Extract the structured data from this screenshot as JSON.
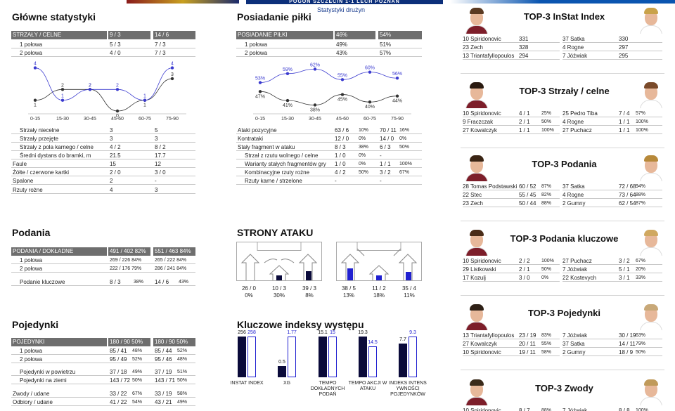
{
  "banner": {
    "match": "POGOŃ SZCZECIN 1-1 LECH POZNAŃ",
    "subtitle": "Statystyki drużyn"
  },
  "colors": {
    "home_dark": "#0a0a3a",
    "away_blue": "#2020d0",
    "header_gray": "#6e6e6e",
    "line_home": "#333333",
    "line_away": "#3a3acf"
  },
  "main_stats": {
    "title": "Główne statystyki",
    "header": {
      "label": "STRZAŁY / CELNE",
      "home": "9 / 3",
      "away": "14 / 6"
    },
    "halves": [
      {
        "label": "1 połowa",
        "home": "5 / 3",
        "away": "7 / 3"
      },
      {
        "label": "2 połowa",
        "home": "4 / 0",
        "away": "7 / 3"
      }
    ],
    "rows": [
      {
        "label": "Strzały niecelne",
        "home": "3",
        "away": "5"
      },
      {
        "label": "Strzały przejęte",
        "home": "3",
        "away": "3"
      },
      {
        "label": "Strzały z pola karnego / celne",
        "home": "4 / 2",
        "away": "8 / 2"
      },
      {
        "label": "Średni dystans do bramki, m",
        "home": "21.5",
        "away": "17.7"
      },
      {
        "label": "Faule",
        "home": "15",
        "away": "12"
      },
      {
        "label": "Żółte / czerwone kartki",
        "home": "2 / 0",
        "away": "3 / 0"
      },
      {
        "label": "Spalone",
        "home": "2",
        "away": "-"
      },
      {
        "label": "Rzuty rożne",
        "home": "4",
        "away": "3"
      }
    ]
  },
  "possession": {
    "title": "Posiadanie piłki",
    "header": {
      "label": "POSIADANIE PIŁKI",
      "home": "46%",
      "away": "54%"
    },
    "halves": [
      {
        "label": "1 połowa",
        "home": "49%",
        "away": "51%"
      },
      {
        "label": "2 połowa",
        "home": "43%",
        "away": "57%"
      }
    ],
    "rows": [
      {
        "label": "Ataki pozycyjne",
        "home": "63 / 6",
        "home_pct": "10%",
        "away": "70 / 11",
        "away_pct": "16%",
        "indent": false
      },
      {
        "label": "Kontrataki",
        "home": "12 / 0",
        "home_pct": "0%",
        "away": "14 / 0",
        "away_pct": "0%",
        "indent": false
      },
      {
        "label": "Stały fragment w ataku",
        "home": "8 / 3",
        "home_pct": "38%",
        "away": "6 / 3",
        "away_pct": "50%",
        "indent": false
      },
      {
        "label": "Strzał z rzutu wolnego / celne",
        "home": "1 / 0",
        "home_pct": "0%",
        "away": "-",
        "away_pct": "",
        "indent": true
      },
      {
        "label": "Warianty stałych fragmentów gry",
        "home": "1 / 0",
        "home_pct": "0%",
        "away": "1 / 1",
        "away_pct": "100%",
        "indent": true
      },
      {
        "label": "Kombinacyjne rzuty rożne",
        "home": "4 / 2",
        "home_pct": "50%",
        "away": "3 / 2",
        "away_pct": "67%",
        "indent": true
      },
      {
        "label": "Rzuty karne / strzelone",
        "home": "-",
        "home_pct": "",
        "away": "-",
        "away_pct": "",
        "indent": true
      }
    ]
  },
  "passes": {
    "title": "Podania",
    "header": {
      "label": "PODANIA / DOKŁADNE",
      "home": "491 / 402 82%",
      "away": "551 / 463 84%"
    },
    "halves": [
      {
        "label": "1 połowa",
        "home": "269 / 226 84%",
        "away": "265 / 222 84%"
      },
      {
        "label": "2 połowa",
        "home": "222 / 176 79%",
        "away": "286 / 241 84%"
      }
    ],
    "key": {
      "label": "Podanie kluczowe",
      "home": "8 / 3",
      "home_pct": "38%",
      "away": "14 / 6",
      "away_pct": "43%"
    }
  },
  "duels": {
    "title": "Pojedynki",
    "header": {
      "label": "POJEDYNKI",
      "home": "180 / 90 50%",
      "away": "180 / 90 50%"
    },
    "rows": [
      {
        "label": "1 połowa",
        "home": "85 / 41",
        "home_pct": "48%",
        "away": "85 / 44",
        "away_pct": "52%",
        "indent": true
      },
      {
        "label": "2 połowa",
        "home": "95 / 49",
        "home_pct": "52%",
        "away": "95 / 46",
        "away_pct": "48%",
        "indent": true
      },
      {
        "label": "Pojedynki w powietrzu",
        "home": "37 / 18",
        "home_pct": "49%",
        "away": "37 / 19",
        "away_pct": "51%",
        "indent": true
      },
      {
        "label": "Pojedynki na ziemi",
        "home": "143 / 72",
        "home_pct": "50%",
        "away": "143 / 71",
        "away_pct": "50%",
        "indent": true
      },
      {
        "label": "Zwody / udane",
        "home": "33 / 22",
        "home_pct": "67%",
        "away": "33 / 19",
        "away_pct": "58%",
        "indent": false
      },
      {
        "label": "Odbiory / udane",
        "home": "41 / 22",
        "home_pct": "54%",
        "away": "43 / 21",
        "away_pct": "49%",
        "indent": false
      }
    ]
  },
  "attack_sides": {
    "title": "STRONY ATAKU",
    "home": [
      {
        "value": "26 / 0",
        "pct": "0%"
      },
      {
        "value": "10 / 3",
        "pct": "30%"
      },
      {
        "value": "39 / 3",
        "pct": "8%"
      }
    ],
    "away": [
      {
        "value": "38 / 5",
        "pct": "13%"
      },
      {
        "value": "11 / 2",
        "pct": "18%"
      },
      {
        "value": "35 / 4",
        "pct": "11%"
      }
    ]
  },
  "key_indexes": {
    "title": "Kluczowe indeksy występu"
  },
  "chart_data": [
    {
      "type": "line",
      "categories": [
        "0-15",
        "15-30",
        "30-45",
        "45-60",
        "60-75",
        "75-90"
      ],
      "series": [
        {
          "values": [
            1,
            2,
            2,
            0,
            1,
            3
          ]
        },
        {
          "values": [
            4,
            1,
            2,
            2,
            1,
            4
          ]
        }
      ],
      "data_labels": [
        "1",
        "2",
        "2",
        "0",
        "1",
        "3",
        "4",
        "1",
        "2",
        "2",
        "1",
        "4"
      ]
    },
    {
      "type": "line",
      "categories": [
        "0-15",
        "15-30",
        "30-45",
        "45-60",
        "60-75",
        "75-90"
      ],
      "series": [
        {
          "values": [
            47,
            41,
            38,
            45,
            40,
            44
          ],
          "labels": [
            "47%",
            "41%",
            "38%",
            "45%",
            "40%",
            "44%"
          ]
        },
        {
          "values": [
            53,
            59,
            62,
            55,
            60,
            56
          ],
          "labels": [
            "53%",
            "59%",
            "62%",
            "55%",
            "60%",
            "56%"
          ]
        }
      ]
    },
    {
      "type": "bar",
      "categories": [
        "INSTAT INDEX",
        "XG",
        "TEMPO DOKŁADNYCH PODAŃ",
        "TEMPO AKCJI W ATAKU",
        "INDEKS INTENSYWNOŚCI POJEDYNKÓW"
      ],
      "category_lines": [
        [
          "INSTAT INDEX"
        ],
        [
          "XG"
        ],
        [
          "TEMPO",
          "DOKŁADNYCH",
          "PODAŃ"
        ],
        [
          "TEMPO AKCJI W",
          "ATAKU"
        ],
        [
          "INDEKS INTENS",
          "YWNOŚCI",
          "POJEDYNKÓW"
        ]
      ],
      "series": [
        {
          "values": [
            256,
            0.5,
            15.1,
            19.3,
            7.7
          ],
          "labels": [
            "256",
            "0.5",
            "15.1",
            "19.3",
            "7.7"
          ]
        },
        {
          "values": [
            258,
            1.77,
            15,
            14.5,
            9.3
          ],
          "labels": [
            "258",
            "1.77",
            "15",
            "14.5",
            "9.3"
          ]
        }
      ],
      "note": "each category uses its own scale"
    }
  ],
  "top3": [
    {
      "title": "TOP-3 InStat Index",
      "home": [
        {
          "name": "10 Spiridonovic",
          "value": "331",
          "pct": ""
        },
        {
          "name": "23 Zech",
          "value": "328",
          "pct": ""
        },
        {
          "name": "13 Triantafyllopoulos",
          "value": "294",
          "pct": ""
        }
      ],
      "away": [
        {
          "name": "37 Satka",
          "value": "330",
          "pct": ""
        },
        {
          "name": "4  Rogne",
          "value": "297",
          "pct": ""
        },
        {
          "name": "7  Jóźwiak",
          "value": "295",
          "pct": ""
        }
      ]
    },
    {
      "title": "TOP-3 Strzały / celne",
      "home": [
        {
          "name": "10 Spiridonovic",
          "value": "4 / 1",
          "pct": "25%"
        },
        {
          "name": "9  Fraczczak",
          "value": "2 / 1",
          "pct": "50%"
        },
        {
          "name": "27 Kowalczyk",
          "value": "1 / 1",
          "pct": "100%"
        }
      ],
      "away": [
        {
          "name": "25 Pedro Tiba",
          "value": "7 / 4",
          "pct": "57%"
        },
        {
          "name": "4  Rogne",
          "value": "1 / 1",
          "pct": "100%"
        },
        {
          "name": "27 Puchacz",
          "value": "1 / 1",
          "pct": "100%"
        }
      ]
    },
    {
      "title": "TOP-3 Podania",
      "home": [
        {
          "name": "28 Tomas Podstawski",
          "value": "60 / 52",
          "pct": "87%"
        },
        {
          "name": "22 Stec",
          "value": "55 / 45",
          "pct": "82%"
        },
        {
          "name": "23 Zech",
          "value": "50 / 44",
          "pct": "88%"
        }
      ],
      "away": [
        {
          "name": "37 Satka",
          "value": "72 / 68",
          "pct": "94%"
        },
        {
          "name": "4  Rogne",
          "value": "73 / 64",
          "pct": "88%"
        },
        {
          "name": "2  Gumny",
          "value": "62 / 54",
          "pct": "87%"
        }
      ]
    },
    {
      "title": "TOP-3 Podania kluczowe",
      "home": [
        {
          "name": "10 Spiridonovic",
          "value": "2 / 2",
          "pct": "100%"
        },
        {
          "name": "29 Listkowski",
          "value": "2 / 1",
          "pct": "50%"
        },
        {
          "name": "17 Kozulj",
          "value": "3 / 0",
          "pct": "0%"
        }
      ],
      "away": [
        {
          "name": "27 Puchacz",
          "value": "3 / 2",
          "pct": "67%"
        },
        {
          "name": "7  Jóźwiak",
          "value": "5 / 1",
          "pct": "20%"
        },
        {
          "name": "22 Kostevych",
          "value": "3 / 1",
          "pct": "33%"
        }
      ]
    },
    {
      "title": "TOP-3 Pojedynki",
      "home": [
        {
          "name": "13 Triantafyllopoulos",
          "value": "23 / 19",
          "pct": "83%"
        },
        {
          "name": "27 Kowalczyk",
          "value": "20 / 11",
          "pct": "55%"
        },
        {
          "name": "10 Spiridonovic",
          "value": "19 / 11",
          "pct": "58%"
        }
      ],
      "away": [
        {
          "name": "7  Jóźwiak",
          "value": "30 / 19",
          "pct": "63%"
        },
        {
          "name": "37 Satka",
          "value": "14 / 11",
          "pct": "79%"
        },
        {
          "name": "2  Gumny",
          "value": "18 / 9",
          "pct": "50%"
        }
      ]
    },
    {
      "title": "TOP-3 Zwody",
      "home": [
        {
          "name": "10 Spiridonovic",
          "value": "8 / 7",
          "pct": "88%"
        }
      ],
      "away": [
        {
          "name": "7  Jóźwiak",
          "value": "8 / 8",
          "pct": "100%"
        }
      ]
    }
  ]
}
